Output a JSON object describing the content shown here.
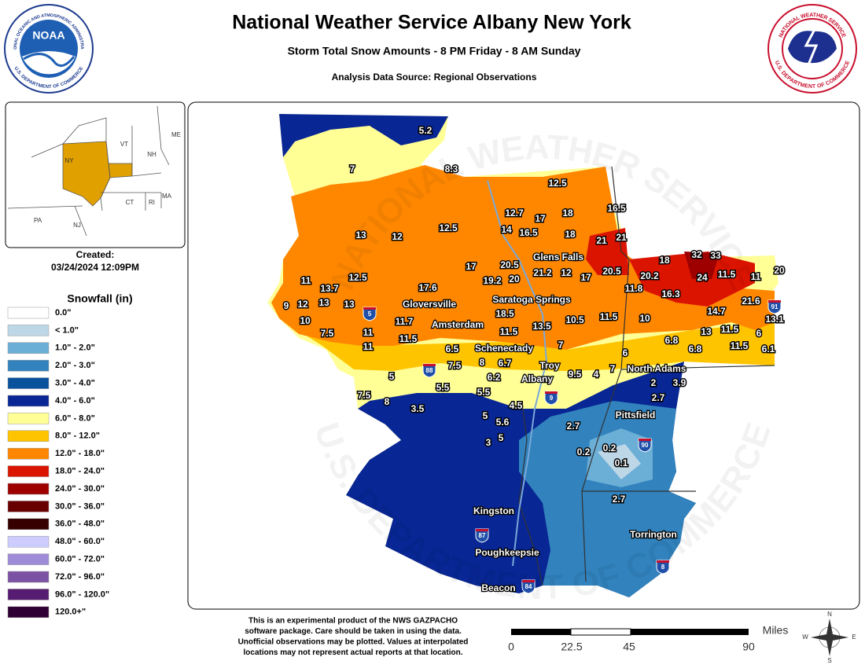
{
  "header": {
    "title": "National Weather Service Albany New York",
    "subtitle": "Storm Total Snow Amounts - 8 PM Friday - 8 AM Sunday",
    "source": "Analysis Data Source: Regional Observations"
  },
  "logos": {
    "noaa": "NOAA",
    "noaa_ring_top": "NATIONAL OCEANIC AND ATMOSPHERIC ADMINISTRATION",
    "noaa_ring_bottom": "U.S. DEPARTMENT OF COMMERCE",
    "nws_ring_top": "NATIONAL WEATHER SERVICE",
    "nws_ring_bottom": "U.S. DEPARTMENT OF COMMERCE"
  },
  "inset": {
    "states": [
      "NY",
      "VT",
      "NH",
      "ME",
      "MA",
      "CT",
      "RI",
      "PA",
      "NJ"
    ]
  },
  "created": {
    "label": "Created:",
    "date": "03/24/2024 12:09PM"
  },
  "legend": {
    "title": "Snowfall (in)",
    "items": [
      {
        "label": "0.0\"",
        "color": "#ffffff"
      },
      {
        "label": "< 1.0\"",
        "color": "#bdd7e7"
      },
      {
        "label": "1.0\" - 2.0\"",
        "color": "#6baed6"
      },
      {
        "label": "2.0\" - 3.0\"",
        "color": "#3182bd"
      },
      {
        "label": "3.0\" - 4.0\"",
        "color": "#08519c"
      },
      {
        "label": "4.0\" - 6.0\"",
        "color": "#082694"
      },
      {
        "label": "6.0\" - 8.0\"",
        "color": "#ffff96"
      },
      {
        "label": "8.0\" - 12.0\"",
        "color": "#ffc400"
      },
      {
        "label": "12.0\" - 18.0\"",
        "color": "#ff8700"
      },
      {
        "label": "18.0\" - 24.0\"",
        "color": "#db1400"
      },
      {
        "label": "24.0\" - 30.0\"",
        "color": "#9e0000"
      },
      {
        "label": "30.0\" - 36.0\"",
        "color": "#690000"
      },
      {
        "label": "36.0\" - 48.0\"",
        "color": "#360000"
      },
      {
        "label": "48.0\" - 60.0\"",
        "color": "#ccccff"
      },
      {
        "label": "60.0\" - 72.0\"",
        "color": "#9f8cd8"
      },
      {
        "label": "72.0\" - 96.0\"",
        "color": "#7c52a5"
      },
      {
        "label": "96.0\" - 120.0\"",
        "color": "#561c72"
      },
      {
        "label": "120.0+\"",
        "color": "#2e0033"
      }
    ]
  },
  "map": {
    "watermark_top": "NATIONAL WEATHER SERVICE",
    "watermark_bottom": "U.S. DEPARTMENT OF COMMERCE",
    "observations": [
      5.2,
      7,
      8.3,
      12.5,
      16.5,
      12.7,
      17,
      18,
      13,
      12,
      12.5,
      14,
      16.5,
      18,
      21,
      21,
      18,
      32,
      33,
      17,
      20.5,
      21.2,
      12,
      17,
      20.5,
      20.2,
      24,
      11.5,
      11,
      20,
      11,
      13.7,
      12.5,
      17.6,
      19.2,
      20,
      11.8,
      16.3,
      21.6,
      9,
      12,
      13,
      13,
      18.5,
      14.7,
      10,
      11.7,
      10.5,
      11.5,
      10,
      13.1,
      7.5,
      11,
      11.5,
      11.5,
      13.5,
      13,
      11.5,
      6,
      11,
      6.8,
      6.8,
      11.5,
      6.1,
      7,
      6,
      6.5,
      7.5,
      8,
      6.7,
      6.2,
      9.5,
      4,
      7,
      5,
      5.5,
      5.5,
      2,
      3.9,
      7.5,
      8,
      3.5,
      2.7,
      4.5,
      5,
      5.6,
      2.7,
      5,
      3,
      0.2,
      0.2,
      0.1,
      2.7
    ],
    "cities": [
      "Glens Falls",
      "Gloversville",
      "Saratoga Springs",
      "Amsterdam",
      "Schenectady",
      "Troy",
      "Albany",
      "North Adams",
      "Pittsfield",
      "Kingston",
      "Poughkeepsie",
      "Beacon",
      "Torrington"
    ],
    "highways": [
      "5",
      "88",
      "9",
      "90",
      "87",
      "84",
      "8",
      "91"
    ]
  },
  "disclaimer": [
    "This is an experimental product of the NWS GAZPACHO",
    "software package. Care should be taken in using the data.",
    "Unofficial observations may be plotted. Values at interpolated",
    "locations may not represent actual reports at that location."
  ],
  "scale": {
    "unit": "Miles",
    "labels": [
      "0",
      "22.5",
      "45",
      "90"
    ]
  },
  "compass": [
    "N",
    "E",
    "S",
    "W"
  ]
}
